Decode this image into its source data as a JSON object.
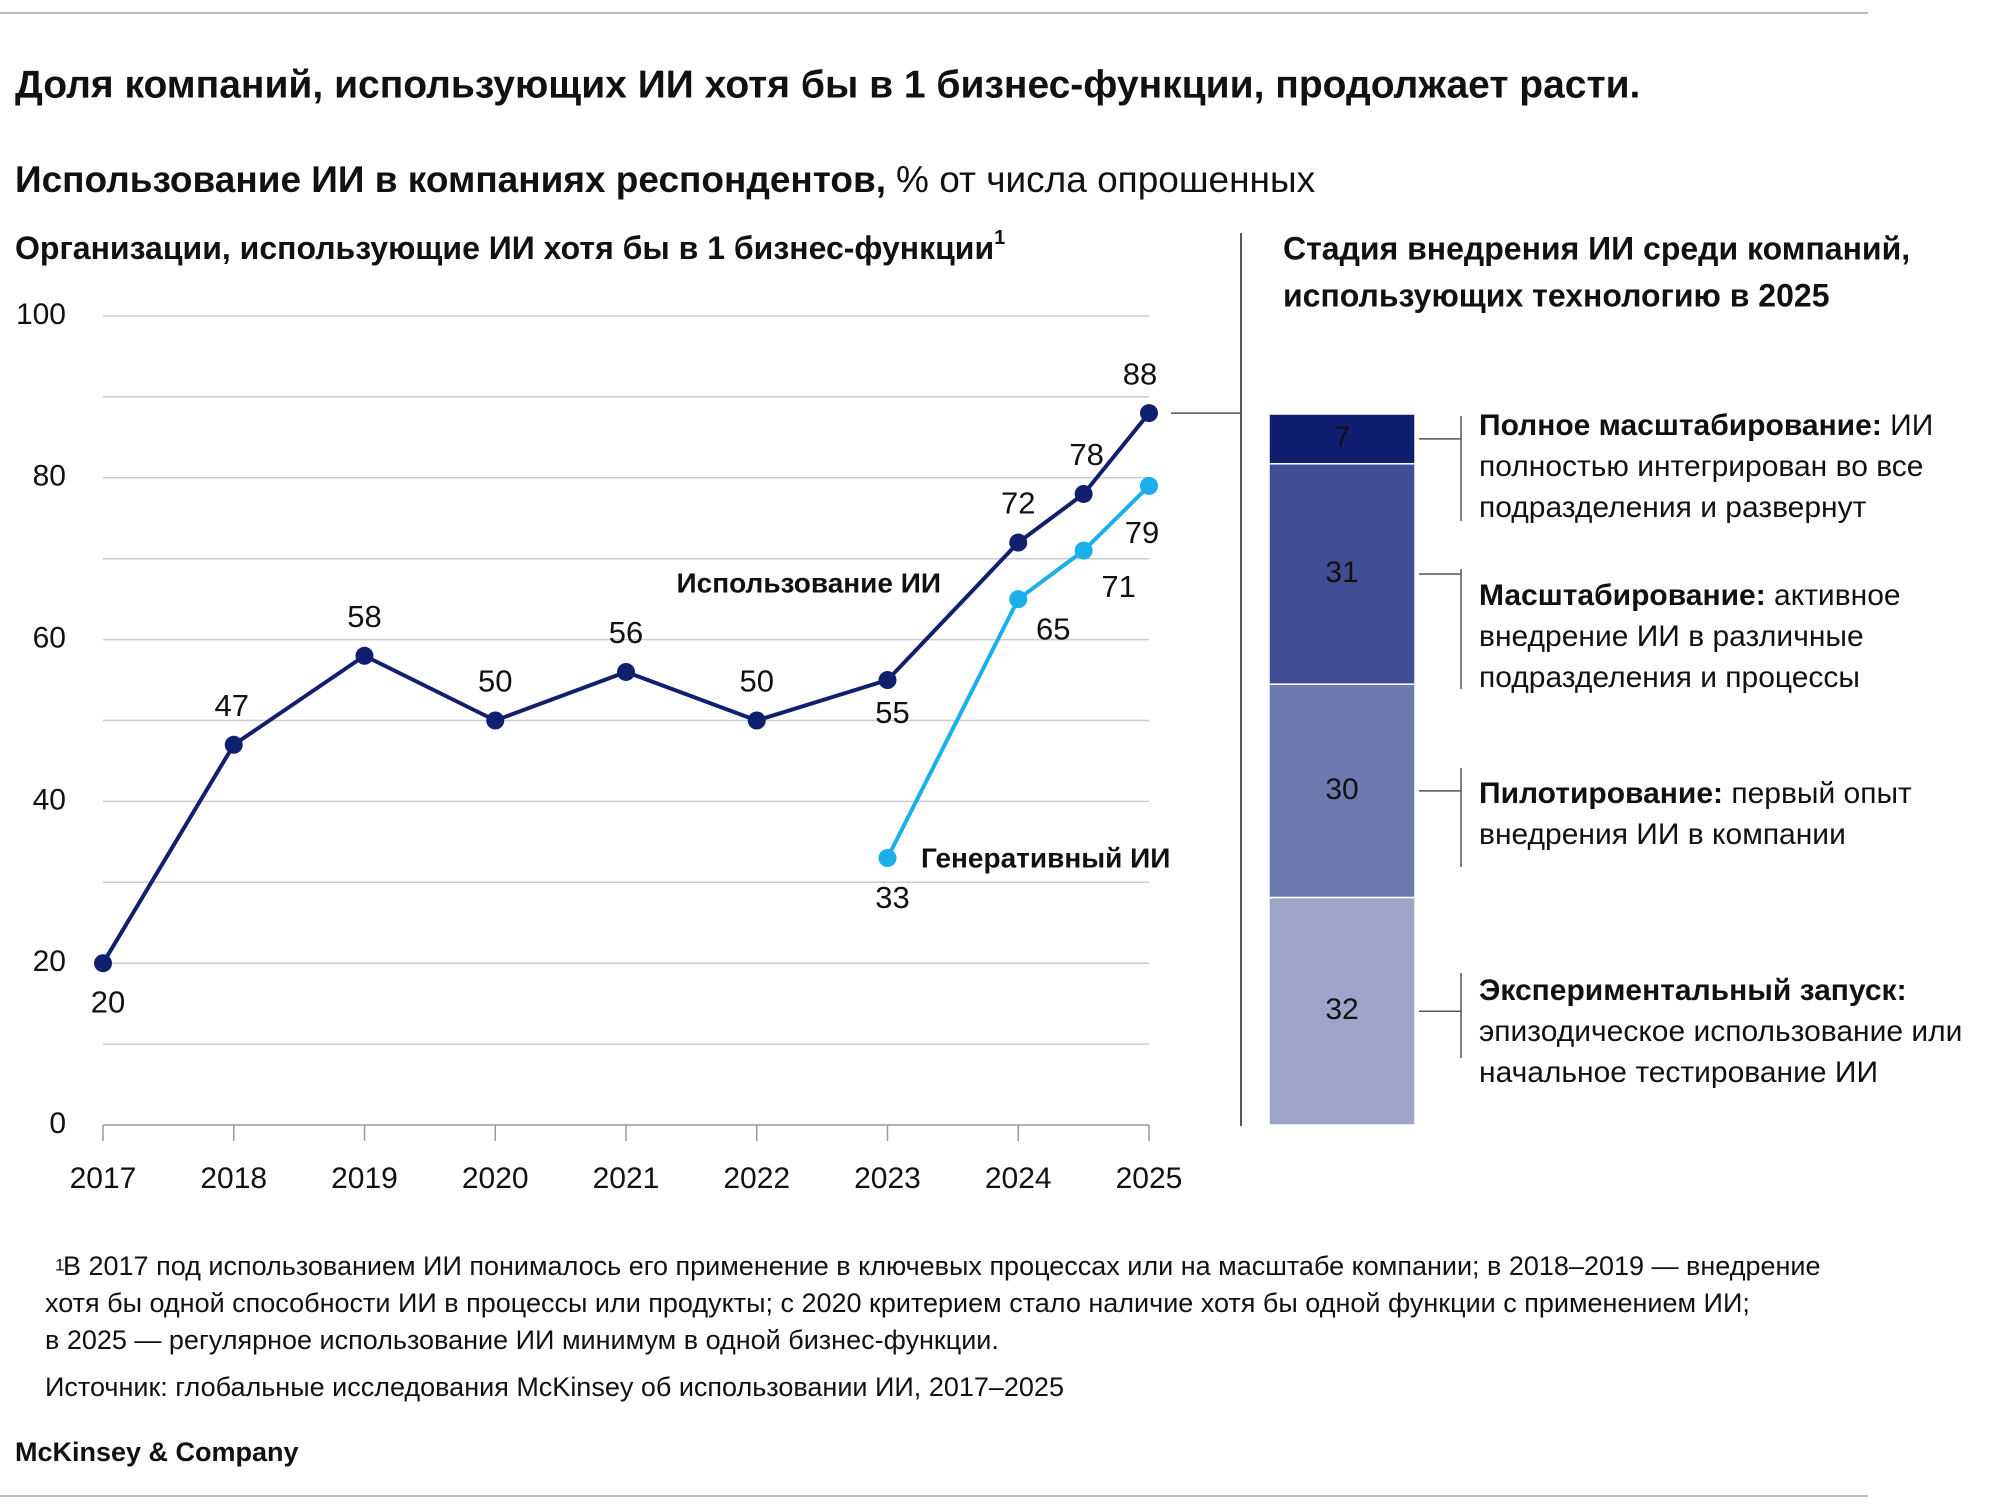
{
  "title": "Доля компаний, использующих ИИ хотя бы в 1 бизнес-функции, продолжает расти.",
  "subtitle": {
    "bold": "Использование ИИ в компаниях респондентов,",
    "regular": "% от числа опрошенных"
  },
  "chart_data": [
    {
      "type": "line",
      "title": "Организации, использующие ИИ хотя бы в 1 бизнес-функции",
      "title_note": "1",
      "series": [
        {
          "name": "Использование ИИ",
          "color": "#101f6e",
          "x": [
            2017,
            2018,
            2019,
            2020,
            2021,
            2022,
            2023,
            2024,
            2024.5,
            2025
          ],
          "values": [
            20,
            47,
            58,
            50,
            56,
            50,
            55,
            72,
            78,
            88
          ]
        },
        {
          "name": "Генеративный ИИ",
          "color": "#1aaeea",
          "x": [
            2023,
            2024,
            2024.5,
            2025
          ],
          "values": [
            33,
            65,
            71,
            79
          ]
        }
      ],
      "xlim": [
        2017,
        2025
      ],
      "xticks": [
        2017,
        2018,
        2019,
        2020,
        2021,
        2022,
        2023,
        2024,
        2025
      ],
      "ylim": [
        0,
        100
      ],
      "yticks": [
        0,
        20,
        40,
        60,
        80,
        100
      ],
      "minor_yticks": [
        10,
        30,
        50,
        70,
        90
      ],
      "grid": true
    },
    {
      "type": "stacked_bar",
      "title": [
        "Стадия внедрения ИИ среди компаний,",
        "использующих технологию в 2025"
      ],
      "series": [
        {
          "name": "Экспериментальный запуск:",
          "description": "эпизодическое использование или начальное тестирование ИИ",
          "color": "#9da5ca",
          "value": 32
        },
        {
          "name": "Пилотирование:",
          "description": "первый опыт внедрения ИИ в компании",
          "color": "#6d7ab0",
          "value": 30
        },
        {
          "name": "Масштабирование:",
          "description": "активное внедрение ИИ в различные подразделения и процессы",
          "color": "#3f4e94",
          "value": 31
        },
        {
          "name": "Полное масштабирование:",
          "description": "ИИ полностью интегрирован во все подразделения и развернут",
          "color": "#0f1e6e",
          "value": 7
        }
      ]
    }
  ],
  "footnote": {
    "marker": "1",
    "lines": [
      "В 2017 под использованием ИИ понималось его применение в ключевых процессах или на масштабе компании; в 2018–2019 — внедрение",
      "хотя бы одной способности ИИ в процессы или продукты; с 2020 критерием стало наличие хотя бы одной функции  с применением ИИ;",
      "в 2025 — регулярное использование ИИ минимум в одной бизнес-функции."
    ]
  },
  "source": "Источник: глобальные исследования McKinsey об использовании ИИ, 2017–2025",
  "brand": "McKinsey & Company"
}
